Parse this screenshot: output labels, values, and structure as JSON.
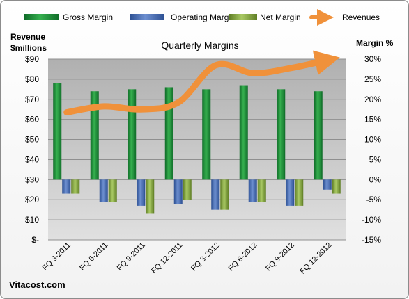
{
  "chart_data": {
    "type": "bar",
    "title": "Quarterly Margins",
    "categories": [
      "FQ 3-2011",
      "FQ 6-2011",
      "FQ 9-2011",
      "FQ 12-2011",
      "FQ 3-2012",
      "FQ 6-2012",
      "FQ 9-2012",
      "FQ 12-2012"
    ],
    "series": [
      {
        "name": "Gross Margin",
        "axis": "right",
        "kind": "bar",
        "color": "#1f8a3a",
        "values": [
          24.0,
          22.0,
          22.5,
          23.0,
          22.5,
          23.5,
          22.5,
          22.0
        ]
      },
      {
        "name": "Operating Margin",
        "axis": "right",
        "kind": "bar",
        "color": "#4a6fb5",
        "values": [
          -3.5,
          -5.5,
          -6.5,
          -6.0,
          -7.5,
          -5.5,
          -6.5,
          -2.5
        ]
      },
      {
        "name": "Net Margin",
        "axis": "right",
        "kind": "bar",
        "color": "#8fb04a",
        "values": [
          -3.5,
          -5.5,
          -8.5,
          -5.0,
          -7.5,
          -5.5,
          -6.5,
          -3.5
        ]
      },
      {
        "name": "Revenues",
        "axis": "left",
        "kind": "line",
        "color": "#f0913a",
        "values": [
          63.5,
          66.5,
          65.0,
          68.5,
          87.0,
          83.0,
          85.5,
          89.5
        ]
      }
    ],
    "left_axis": {
      "label": "Revenue $millions",
      "ylim": [
        0,
        90
      ],
      "ticks": [
        "$-",
        "$10",
        "$20",
        "$30",
        "$40",
        "$50",
        "$60",
        "$70",
        "$80",
        "$90"
      ]
    },
    "right_axis": {
      "label": "Margin %",
      "ylim": [
        -15,
        30
      ],
      "ticks": [
        "-15%",
        "-10%",
        "-5%",
        "0%",
        "5%",
        "10%",
        "15%",
        "20%",
        "25%",
        "30%"
      ]
    },
    "grid": true,
    "legend": "top"
  },
  "source": "Vitacost.com",
  "colors": {
    "plot_bg_top": "#b3b3b3",
    "plot_bg_bottom": "#dcdcdc",
    "grid": "#8f8f8f"
  }
}
